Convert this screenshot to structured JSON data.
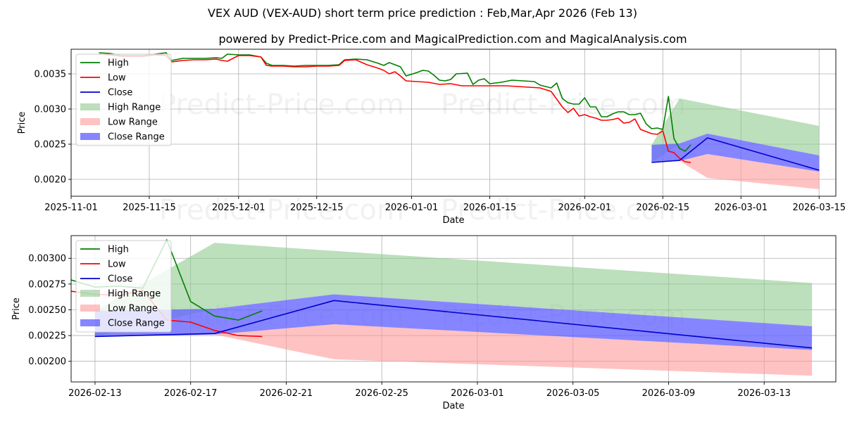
{
  "title": "VEX AUD (VEX-AUD) short term price prediction : Feb,Mar,Apr 2026 (Feb 13)",
  "subtitle": "powered by Predict-Price.com and MagicalPrediction.com and MagicalAnalysis.com",
  "watermark": "Predict-Price.com",
  "colors": {
    "high": "#008000",
    "low": "#ff0000",
    "close": "#0000cc",
    "high_range": "#8fc98f",
    "low_range": "#ff9999",
    "close_range": "#6666ff"
  },
  "chart_data": [
    {
      "type": "line",
      "xlabel": "Date",
      "ylabel": "Price",
      "xlim": [
        "2025-11-01",
        "2026-03-18"
      ],
      "ylim": [
        0.00176,
        0.00385
      ],
      "xticks": [
        "2025-11-01",
        "2025-11-15",
        "2025-12-01",
        "2025-12-15",
        "2026-01-01",
        "2026-01-15",
        "2026-02-01",
        "2026-02-15",
        "2026-03-01",
        "2026-03-15"
      ],
      "yticks": [
        "0.0020",
        "0.0025",
        "0.0030",
        "0.0035"
      ],
      "legend": [
        "High",
        "Low",
        "Close",
        "High Range",
        "Low Range",
        "Close Range"
      ],
      "legend_position": "top-left"
    },
    {
      "type": "line",
      "xlabel": "Date",
      "ylabel": "Price",
      "xlim": [
        "2026-02-12",
        "2026-03-16"
      ],
      "ylim": [
        0.0018,
        0.00322
      ],
      "xticks": [
        "2026-02-13",
        "2026-02-17",
        "2026-02-21",
        "2026-02-25",
        "2026-03-01",
        "2026-03-05",
        "2026-03-09",
        "2026-03-13"
      ],
      "yticks": [
        "0.00200",
        "0.00225",
        "0.00250",
        "0.00275",
        "0.00300"
      ],
      "legend": [
        "High",
        "Low",
        "Close",
        "High Range",
        "Low Range",
        "Close Range"
      ],
      "legend_position": "top-left"
    }
  ],
  "series": {
    "high": [
      [
        "2025-11-06",
        0.0038
      ],
      [
        "2025-11-08",
        0.00379
      ],
      [
        "2025-11-10",
        0.00376
      ],
      [
        "2025-11-12",
        0.00376
      ],
      [
        "2025-11-14",
        0.00376
      ],
      [
        "2025-11-16",
        0.00378
      ],
      [
        "2025-11-18",
        0.0038
      ],
      [
        "2025-11-19",
        0.00369
      ],
      [
        "2025-11-21",
        0.00372
      ],
      [
        "2025-11-23",
        0.00372
      ],
      [
        "2025-11-25",
        0.00372
      ],
      [
        "2025-11-27",
        0.00373
      ],
      [
        "2025-11-28",
        0.00372
      ],
      [
        "2025-11-29",
        0.00378
      ],
      [
        "2025-12-01",
        0.00377
      ],
      [
        "2025-12-03",
        0.00377
      ],
      [
        "2025-12-05",
        0.00374
      ],
      [
        "2025-12-06",
        0.00365
      ],
      [
        "2025-12-07",
        0.00362
      ],
      [
        "2025-12-09",
        0.00362
      ],
      [
        "2025-12-11",
        0.00361
      ],
      [
        "2025-12-13",
        0.00362
      ],
      [
        "2025-12-15",
        0.00362
      ],
      [
        "2025-12-17",
        0.00362
      ],
      [
        "2025-12-19",
        0.00363
      ],
      [
        "2025-12-20",
        0.0037
      ],
      [
        "2025-12-22",
        0.00371
      ],
      [
        "2025-12-24",
        0.0037
      ],
      [
        "2025-12-26",
        0.00365
      ],
      [
        "2025-12-27",
        0.00362
      ],
      [
        "2025-12-28",
        0.00366
      ],
      [
        "2025-12-30",
        0.0036
      ],
      [
        "2025-12-31",
        0.00347
      ],
      [
        "2026-01-02",
        0.00352
      ],
      [
        "2026-01-03",
        0.00355
      ],
      [
        "2026-01-04",
        0.00354
      ],
      [
        "2026-01-05",
        0.00348
      ],
      [
        "2026-01-06",
        0.00341
      ],
      [
        "2026-01-07",
        0.0034
      ],
      [
        "2026-01-08",
        0.00342
      ],
      [
        "2026-01-09",
        0.0035
      ],
      [
        "2026-01-11",
        0.00351
      ],
      [
        "2026-01-12",
        0.00335
      ],
      [
        "2026-01-13",
        0.00341
      ],
      [
        "2026-01-14",
        0.00343
      ],
      [
        "2026-01-15",
        0.00336
      ],
      [
        "2026-01-17",
        0.00338
      ],
      [
        "2026-01-19",
        0.00341
      ],
      [
        "2026-01-21",
        0.0034
      ],
      [
        "2026-01-23",
        0.00339
      ],
      [
        "2026-01-24",
        0.00334
      ],
      [
        "2026-01-26",
        0.0033
      ],
      [
        "2026-01-27",
        0.00337
      ],
      [
        "2026-01-28",
        0.00315
      ],
      [
        "2026-01-29",
        0.00309
      ],
      [
        "2026-01-30",
        0.00307
      ],
      [
        "2026-01-31",
        0.00307
      ],
      [
        "2026-02-01",
        0.00316
      ],
      [
        "2026-02-02",
        0.00303
      ],
      [
        "2026-02-03",
        0.00303
      ],
      [
        "2026-02-04",
        0.00289
      ],
      [
        "2026-02-05",
        0.00289
      ],
      [
        "2026-02-06",
        0.00293
      ],
      [
        "2026-02-07",
        0.00296
      ],
      [
        "2026-02-08",
        0.00296
      ],
      [
        "2026-02-09",
        0.00292
      ],
      [
        "2026-02-10",
        0.00292
      ],
      [
        "2026-02-11",
        0.00294
      ],
      [
        "2026-02-12",
        0.00279
      ],
      [
        "2026-02-13",
        0.00272
      ],
      [
        "2026-02-14",
        0.00273
      ],
      [
        "2026-02-15",
        0.00271
      ],
      [
        "2026-02-16",
        0.00318
      ],
      [
        "2026-02-17",
        0.00258
      ],
      [
        "2026-02-18",
        0.00244
      ],
      [
        "2026-02-19",
        0.0024
      ],
      [
        "2026-02-20",
        0.00249
      ]
    ],
    "low": [
      [
        "2025-11-06",
        0.00378
      ],
      [
        "2025-11-08",
        0.00377
      ],
      [
        "2025-11-10",
        0.00375
      ],
      [
        "2025-11-12",
        0.00375
      ],
      [
        "2025-11-14",
        0.00375
      ],
      [
        "2025-11-16",
        0.00377
      ],
      [
        "2025-11-18",
        0.00376
      ],
      [
        "2025-11-19",
        0.00367
      ],
      [
        "2025-11-21",
        0.00369
      ],
      [
        "2025-11-23",
        0.0037
      ],
      [
        "2025-11-25",
        0.0037
      ],
      [
        "2025-11-27",
        0.00371
      ],
      [
        "2025-11-28",
        0.00369
      ],
      [
        "2025-11-29",
        0.00368
      ],
      [
        "2025-12-01",
        0.00376
      ],
      [
        "2025-12-03",
        0.00376
      ],
      [
        "2025-12-05",
        0.00374
      ],
      [
        "2025-12-06",
        0.00362
      ],
      [
        "2025-12-07",
        0.00361
      ],
      [
        "2025-12-09",
        0.00361
      ],
      [
        "2025-12-11",
        0.0036
      ],
      [
        "2025-12-13",
        0.0036
      ],
      [
        "2025-12-15",
        0.00361
      ],
      [
        "2025-12-17",
        0.00361
      ],
      [
        "2025-12-19",
        0.00362
      ],
      [
        "2025-12-20",
        0.00369
      ],
      [
        "2025-12-22",
        0.0037
      ],
      [
        "2025-12-24",
        0.00363
      ],
      [
        "2025-12-26",
        0.00358
      ],
      [
        "2025-12-27",
        0.00355
      ],
      [
        "2025-12-28",
        0.0035
      ],
      [
        "2025-12-29",
        0.00353
      ],
      [
        "2025-12-30",
        0.00347
      ],
      [
        "2025-12-31",
        0.0034
      ],
      [
        "2026-01-02",
        0.00339
      ],
      [
        "2026-01-04",
        0.00338
      ],
      [
        "2026-01-06",
        0.00335
      ],
      [
        "2026-01-08",
        0.00336
      ],
      [
        "2026-01-10",
        0.00333
      ],
      [
        "2026-01-12",
        0.00333
      ],
      [
        "2026-01-14",
        0.00333
      ],
      [
        "2026-01-16",
        0.00333
      ],
      [
        "2026-01-18",
        0.00333
      ],
      [
        "2026-01-20",
        0.00332
      ],
      [
        "2026-01-22",
        0.00331
      ],
      [
        "2026-01-24",
        0.0033
      ],
      [
        "2026-01-26",
        0.00325
      ],
      [
        "2026-01-27",
        0.00314
      ],
      [
        "2026-01-28",
        0.00303
      ],
      [
        "2026-01-29",
        0.00295
      ],
      [
        "2026-01-30",
        0.00301
      ],
      [
        "2026-01-31",
        0.0029
      ],
      [
        "2026-02-01",
        0.00292
      ],
      [
        "2026-02-02",
        0.00289
      ],
      [
        "2026-02-03",
        0.00287
      ],
      [
        "2026-02-04",
        0.00284
      ],
      [
        "2026-02-05",
        0.00284
      ],
      [
        "2026-02-06",
        0.00285
      ],
      [
        "2026-02-07",
        0.00287
      ],
      [
        "2026-02-08",
        0.0028
      ],
      [
        "2026-02-09",
        0.00281
      ],
      [
        "2026-02-10",
        0.00286
      ],
      [
        "2026-02-11",
        0.00271
      ],
      [
        "2026-02-12",
        0.00268
      ],
      [
        "2026-02-13",
        0.00265
      ],
      [
        "2026-02-14",
        0.00264
      ],
      [
        "2026-02-15",
        0.00269
      ],
      [
        "2026-02-16",
        0.0024
      ],
      [
        "2026-02-17",
        0.00238
      ],
      [
        "2026-02-18",
        0.0023
      ],
      [
        "2026-02-19",
        0.00225
      ],
      [
        "2026-02-20",
        0.00224
      ]
    ],
    "close_forecast": [
      [
        "2026-02-13",
        0.00224
      ],
      [
        "2026-02-18",
        0.00227
      ],
      [
        "2026-02-23",
        0.00259
      ],
      [
        "2026-03-15",
        0.00213
      ]
    ],
    "high_range_upper": [
      [
        "2026-02-13",
        0.00249
      ],
      [
        "2026-02-18",
        0.00315
      ],
      [
        "2026-03-15",
        0.00276
      ]
    ],
    "high_range_lower": [
      [
        "2026-02-13",
        0.00224
      ],
      [
        "2026-02-18",
        0.00251
      ],
      [
        "2026-02-23",
        0.00265
      ],
      [
        "2026-03-15",
        0.00234
      ]
    ],
    "low_range_upper": [
      [
        "2026-02-13",
        0.0024
      ],
      [
        "2026-02-18",
        0.00226
      ],
      [
        "2026-02-23",
        0.00236
      ],
      [
        "2026-03-15",
        0.00211
      ]
    ],
    "low_range_lower": [
      [
        "2026-02-13",
        0.0024
      ],
      [
        "2026-02-18",
        0.00226
      ],
      [
        "2026-02-23",
        0.00202
      ],
      [
        "2026-03-15",
        0.00186
      ]
    ],
    "close_range_upper": [
      [
        "2026-02-13",
        0.00249
      ],
      [
        "2026-02-18",
        0.00251
      ],
      [
        "2026-02-23",
        0.00265
      ],
      [
        "2026-03-15",
        0.00234
      ]
    ],
    "close_range_lower": [
      [
        "2026-02-13",
        0.00224
      ],
      [
        "2026-02-18",
        0.00226
      ],
      [
        "2026-02-23",
        0.00236
      ],
      [
        "2026-03-15",
        0.00211
      ]
    ]
  }
}
